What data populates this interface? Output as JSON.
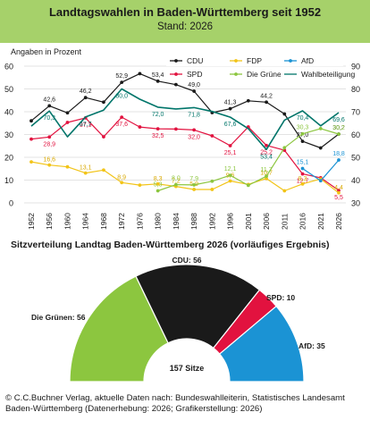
{
  "header": {
    "title": "Landtagswahlen in Baden-Württemberg seit 1952",
    "subtitle": "Stand: 2026"
  },
  "chart_data": [
    {
      "type": "line",
      "ylabel": "Angaben in Prozent",
      "x": [
        "1952",
        "1956",
        "1960",
        "1964",
        "1968",
        "1972",
        "1976",
        "1980",
        "1984",
        "1988",
        "1992",
        "1996",
        "2001",
        "2006",
        "2011",
        "2016",
        "2021",
        "2026"
      ],
      "ylim_left": [
        0,
        60
      ],
      "ylim_right": [
        30,
        90
      ],
      "yticks_left": [
        "0",
        "10",
        "20",
        "30",
        "40",
        "50",
        "60"
      ],
      "yticks_right": [
        "30",
        "40",
        "50",
        "60",
        "70",
        "80",
        "90"
      ],
      "legend_position": "top-right",
      "series": [
        {
          "name": "CDU",
          "color": "#1a1a1a",
          "axis": "left",
          "values": [
            36.0,
            42.6,
            39.5,
            46.2,
            44.2,
            52.9,
            56.7,
            53.4,
            51.9,
            49.0,
            39.6,
            41.3,
            44.8,
            44.2,
            39.0,
            27.0,
            24.1,
            30.2
          ],
          "labels": {
            "1956": "42,6",
            "1964": "46,2",
            "1972": "52,9",
            "1980": "53,4",
            "1988": "49,0",
            "1996": "41,3",
            "2006": "44,2",
            "2016": "27,0",
            "2026": "30,2"
          }
        },
        {
          "name": "SPD",
          "color": "#e2123f",
          "axis": "left",
          "values": [
            28.0,
            28.9,
            35.3,
            37.3,
            29.0,
            37.6,
            33.3,
            32.5,
            32.4,
            32.0,
            29.4,
            25.1,
            33.3,
            25.2,
            23.1,
            12.7,
            11.0,
            5.5
          ],
          "labels": {
            "1956": "28,9",
            "1964": "37,3",
            "1972": "37,6",
            "1980": "32,5",
            "1988": "32,0",
            "1996": "25,1",
            "2006": "25,2",
            "2016": "12,7",
            "2026": "5,5"
          }
        },
        {
          "name": "FDP",
          "color": "#f2c418",
          "axis": "left",
          "values": [
            18.0,
            16.6,
            15.8,
            13.1,
            14.4,
            8.9,
            7.8,
            8.3,
            7.2,
            5.9,
            5.9,
            9.6,
            8.1,
            10.7,
            5.3,
            8.3,
            10.5,
            4.4
          ],
          "labels": {
            "1956": "16,6",
            "1964": "13,1",
            "1972": "8,9",
            "1980": "8,3",
            "1984": "7,2",
            "1988": "5,9",
            "1996": "9,6",
            "2006": "10,7",
            "2016": "8,3",
            "2026": "4,4"
          }
        },
        {
          "name": "Die Grünen",
          "color": "#8cc63f",
          "axis": "left",
          "values": [
            null,
            null,
            null,
            null,
            null,
            null,
            null,
            5.3,
            8.0,
            7.9,
            9.5,
            12.1,
            7.7,
            11.7,
            24.2,
            30.3,
            32.6,
            30.2
          ],
          "labels": {
            "1980": "5,3",
            "1984": "8,0",
            "1988": "7,9",
            "1996": "12,1",
            "2006": "11,7",
            "2016": "30,3",
            "2026": "30,2"
          }
        },
        {
          "name": "AfD",
          "color": "#1b93d4",
          "axis": "left",
          "values": [
            null,
            null,
            null,
            null,
            null,
            null,
            null,
            null,
            null,
            null,
            null,
            null,
            null,
            null,
            null,
            15.1,
            9.7,
            18.8
          ],
          "labels": {
            "2016": "15,1",
            "2026": "18,8"
          }
        },
        {
          "name": "Wahlbeteiligung",
          "color": "#00756a",
          "axis": "right",
          "values": [
            63.7,
            70.3,
            59.0,
            67.7,
            70.7,
            80.0,
            75.5,
            72.0,
            71.2,
            71.8,
            70.1,
            67.6,
            62.6,
            53.4,
            66.3,
            70.4,
            63.8,
            69.6
          ],
          "labels": {
            "1956": "70,3",
            "1964": "67,7",
            "1972": "80,0",
            "1980": "72,0",
            "1988": "71,8",
            "1996": "67,6",
            "2006": "53,4",
            "2016": "70,4",
            "2026": "69,6"
          }
        }
      ]
    },
    {
      "type": "pie",
      "subtype": "semicircle",
      "title": "Sitzverteilung Landtag Baden-Württemberg 2026 (vorläufiges Ergebnis)",
      "total_label": "157 Sitze",
      "slices": [
        {
          "name": "Die Grünen",
          "value": 56,
          "label": "Die Grünen: 56",
          "color": "#8cc63f"
        },
        {
          "name": "CDU",
          "value": 56,
          "label": "CDU: 56",
          "color": "#1a1a1a"
        },
        {
          "name": "SPD",
          "value": 10,
          "label": "SPD: 10",
          "color": "#e2123f"
        },
        {
          "name": "AfD",
          "value": 35,
          "label": "AfD: 35",
          "color": "#1b93d4"
        }
      ]
    }
  ],
  "footer": {
    "line1": "© C.C.Buchner Verlag, aktuelle Daten nach: Bundeswahlleiterin, Statistisches Landesamt",
    "line2": "Baden-Württemberg (Datenerhebung: 2026; Grafikerstellung: 2026)"
  }
}
